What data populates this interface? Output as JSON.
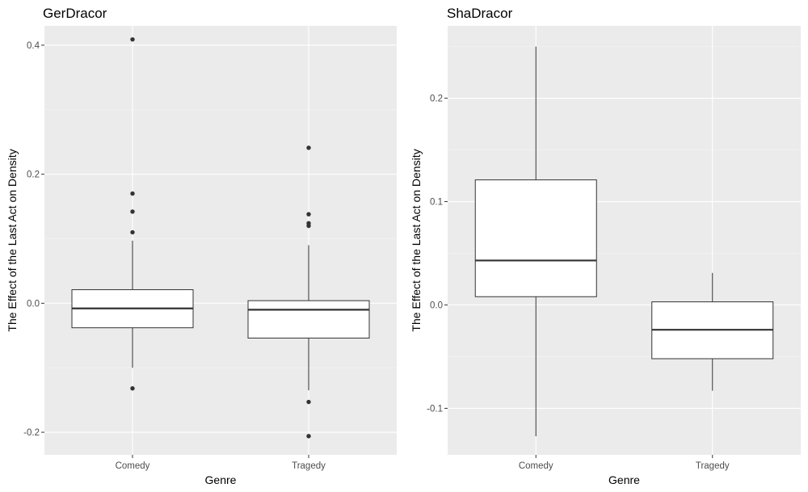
{
  "chart_data": [
    {
      "type": "boxplot",
      "title": "GerDracor",
      "xlabel": "Genre",
      "ylabel": "The Effect of the Last Act on Density",
      "categories": [
        "Comedy",
        "Tragedy"
      ],
      "ylim": [
        -0.235,
        0.43
      ],
      "yticks": [
        -0.2,
        0.0,
        0.2,
        0.4
      ],
      "ytick_labels": [
        "-0.2",
        "0.0",
        "0.2",
        "0.4"
      ],
      "grid": true,
      "boxes": [
        {
          "category": "Comedy",
          "whisker_low": -0.1,
          "q1": -0.038,
          "median": -0.008,
          "q3": 0.021,
          "whisker_high": 0.097,
          "outliers": [
            0.409,
            0.17,
            0.142,
            0.11,
            -0.132
          ]
        },
        {
          "category": "Tragedy",
          "whisker_low": -0.135,
          "q1": -0.054,
          "median": -0.01,
          "q3": 0.004,
          "whisker_high": 0.09,
          "outliers": [
            0.241,
            0.138,
            0.124,
            0.12,
            -0.153,
            -0.206
          ]
        }
      ]
    },
    {
      "type": "boxplot",
      "title": "ShaDracor",
      "xlabel": "Genre",
      "ylabel": "The Effect of the Last Act on Density",
      "categories": [
        "Comedy",
        "Tragedy"
      ],
      "ylim": [
        -0.145,
        0.27
      ],
      "yticks": [
        -0.1,
        0.0,
        0.1,
        0.2
      ],
      "ytick_labels": [
        "-0.1",
        "0.0",
        "0.1",
        "0.2"
      ],
      "grid": true,
      "boxes": [
        {
          "category": "Comedy",
          "whisker_low": -0.127,
          "q1": 0.008,
          "median": 0.043,
          "q3": 0.121,
          "whisker_high": 0.25,
          "outliers": []
        },
        {
          "category": "Tragedy",
          "whisker_low": -0.083,
          "q1": -0.052,
          "median": -0.024,
          "q3": 0.003,
          "whisker_high": 0.031,
          "outliers": []
        }
      ]
    }
  ]
}
